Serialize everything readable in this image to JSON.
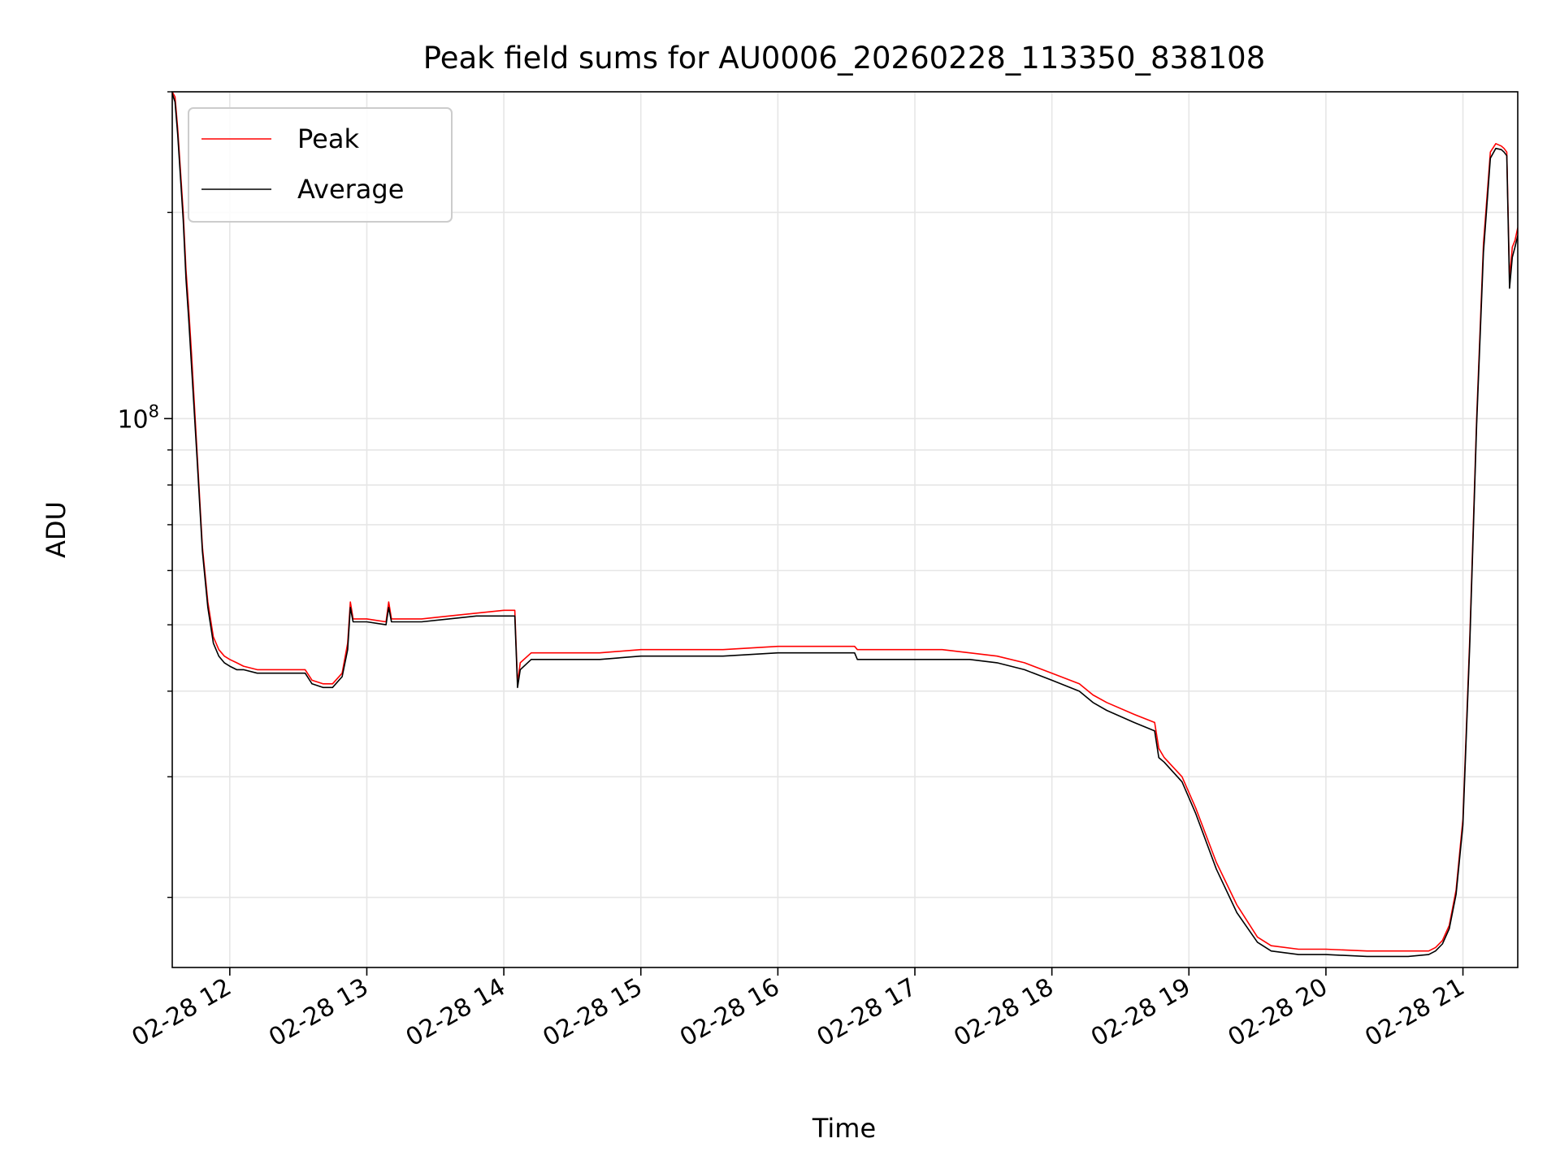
{
  "chart_data": {
    "type": "line",
    "title": "Peak field sums for AU0006_20260228_113350_838108",
    "xlabel": "Time",
    "ylabel": "ADU",
    "yscale": "log",
    "xlim": [
      11.58,
      21.4
    ],
    "ylim": [
      15800000,
      300000000
    ],
    "x_ticks": [
      {
        "value": 12,
        "label": "02-28 12"
      },
      {
        "value": 13,
        "label": "02-28 13"
      },
      {
        "value": 14,
        "label": "02-28 14"
      },
      {
        "value": 15,
        "label": "02-28 15"
      },
      {
        "value": 16,
        "label": "02-28 16"
      },
      {
        "value": 17,
        "label": "02-28 17"
      },
      {
        "value": 18,
        "label": "02-28 18"
      },
      {
        "value": 19,
        "label": "02-28 19"
      },
      {
        "value": 20,
        "label": "02-28 20"
      },
      {
        "value": 21,
        "label": "02-28 21"
      }
    ],
    "y_major_ticks": [
      {
        "value": 100000000,
        "base": "10",
        "exp": "8"
      }
    ],
    "y_minor_ticks": [
      20000000,
      30000000,
      40000000,
      50000000,
      60000000,
      70000000,
      80000000,
      90000000,
      200000000,
      300000000
    ],
    "grid": true,
    "legend_position": "upper-left",
    "series": [
      {
        "name": "Peak",
        "color": "#ff0000",
        "x": [
          11.58,
          11.6,
          11.62,
          11.66,
          11.68,
          11.7,
          11.72,
          11.76,
          11.8,
          11.84,
          11.88,
          11.92,
          11.96,
          12.0,
          12.05,
          12.1,
          12.2,
          12.4,
          12.55,
          12.6,
          12.68,
          12.75,
          12.82,
          12.86,
          12.88,
          12.9,
          13.0,
          13.14,
          13.16,
          13.18,
          13.2,
          13.4,
          13.6,
          13.8,
          14.0,
          14.08,
          14.1,
          14.12,
          14.2,
          14.4,
          14.7,
          15.0,
          15.3,
          15.6,
          16.0,
          16.3,
          16.56,
          16.58,
          16.8,
          17.0,
          17.2,
          17.4,
          17.6,
          17.8,
          18.0,
          18.2,
          18.3,
          18.4,
          18.6,
          18.75,
          18.78,
          18.82,
          18.95,
          19.05,
          19.2,
          19.35,
          19.5,
          19.6,
          19.8,
          20.0,
          20.3,
          20.6,
          20.75,
          20.8,
          20.85,
          20.9,
          20.95,
          21.0,
          21.05,
          21.1,
          21.15,
          21.2,
          21.24,
          21.28,
          21.3,
          21.32,
          21.34,
          21.36,
          21.38,
          21.4
        ],
        "values": [
          300000000,
          295000000,
          265000000,
          200000000,
          165000000,
          145000000,
          125000000,
          90000000,
          65000000,
          54000000,
          48000000,
          46000000,
          45000000,
          44500000,
          44000000,
          43500000,
          43000000,
          43000000,
          43000000,
          41500000,
          41000000,
          41000000,
          42500000,
          47000000,
          54000000,
          51000000,
          51000000,
          50500000,
          54000000,
          51000000,
          51000000,
          51000000,
          51500000,
          52000000,
          52500000,
          52500000,
          41000000,
          44000000,
          45500000,
          45500000,
          45500000,
          46000000,
          46000000,
          46000000,
          46500000,
          46500000,
          46500000,
          46000000,
          46000000,
          46000000,
          46000000,
          45500000,
          45000000,
          44000000,
          42500000,
          41000000,
          39500000,
          38500000,
          37000000,
          36000000,
          33000000,
          32000000,
          30000000,
          27000000,
          22500000,
          19500000,
          17500000,
          17000000,
          16800000,
          16800000,
          16700000,
          16700000,
          16700000,
          16900000,
          17300000,
          18200000,
          20500000,
          26000000,
          48000000,
          100000000,
          180000000,
          245000000,
          252000000,
          250000000,
          248000000,
          245000000,
          160000000,
          178000000,
          182000000,
          190000000
        ]
      },
      {
        "name": "Average",
        "color": "#000000",
        "x": [
          11.58,
          11.6,
          11.62,
          11.66,
          11.68,
          11.7,
          11.72,
          11.76,
          11.8,
          11.84,
          11.88,
          11.92,
          11.96,
          12.0,
          12.05,
          12.1,
          12.2,
          12.4,
          12.55,
          12.6,
          12.68,
          12.75,
          12.82,
          12.86,
          12.88,
          12.9,
          13.0,
          13.14,
          13.16,
          13.18,
          13.2,
          13.4,
          13.6,
          13.8,
          14.0,
          14.08,
          14.1,
          14.12,
          14.2,
          14.4,
          14.7,
          15.0,
          15.3,
          15.6,
          16.0,
          16.3,
          16.56,
          16.58,
          16.8,
          17.0,
          17.2,
          17.4,
          17.6,
          17.8,
          18.0,
          18.2,
          18.3,
          18.4,
          18.6,
          18.75,
          18.78,
          18.82,
          18.95,
          19.05,
          19.2,
          19.35,
          19.5,
          19.6,
          19.8,
          20.0,
          20.3,
          20.6,
          20.75,
          20.8,
          20.85,
          20.9,
          20.95,
          21.0,
          21.05,
          21.1,
          21.15,
          21.2,
          21.24,
          21.28,
          21.3,
          21.32,
          21.34,
          21.36,
          21.38,
          21.4
        ],
        "values": [
          298000000,
          290000000,
          260000000,
          195000000,
          160000000,
          140000000,
          120000000,
          88000000,
          64000000,
          53000000,
          47000000,
          45000000,
          44000000,
          43500000,
          43000000,
          43000000,
          42500000,
          42500000,
          42500000,
          41000000,
          40500000,
          40500000,
          42000000,
          46000000,
          53000000,
          50500000,
          50500000,
          50000000,
          53000000,
          50500000,
          50500000,
          50500000,
          51000000,
          51500000,
          51500000,
          51500000,
          40500000,
          43000000,
          44500000,
          44500000,
          44500000,
          45000000,
          45000000,
          45000000,
          45500000,
          45500000,
          45500000,
          44500000,
          44500000,
          44500000,
          44500000,
          44500000,
          44000000,
          43000000,
          41500000,
          40000000,
          38500000,
          37500000,
          36000000,
          35000000,
          32000000,
          31500000,
          29500000,
          26500000,
          22000000,
          19000000,
          17200000,
          16700000,
          16500000,
          16500000,
          16400000,
          16400000,
          16500000,
          16700000,
          17100000,
          18000000,
          20200000,
          25500000,
          47000000,
          98000000,
          175000000,
          240000000,
          248000000,
          247000000,
          245000000,
          242000000,
          155000000,
          172000000,
          178000000,
          185000000
        ]
      }
    ]
  }
}
